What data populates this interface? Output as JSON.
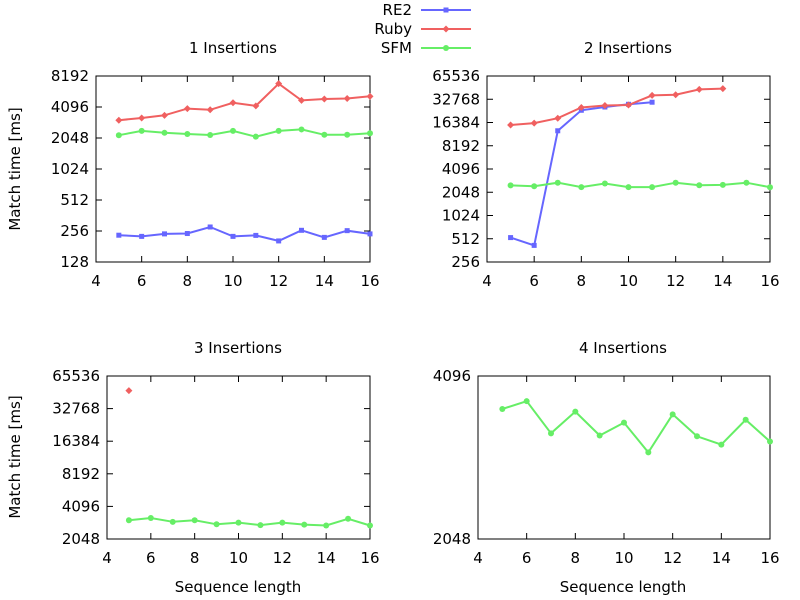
{
  "legend": {
    "placement": "top-center",
    "entries": [
      {
        "name": "RE2",
        "color": "#6666ff",
        "marker": "square"
      },
      {
        "name": "Ruby",
        "color": "#f06060",
        "marker": "diamond"
      },
      {
        "name": "SFM",
        "color": "#66ee66",
        "marker": "circle"
      }
    ]
  },
  "chart_data": [
    {
      "type": "line",
      "title": "1 Insertions",
      "xlabel": "",
      "ylabel": "Match time [ms]",
      "xlim": [
        4,
        16
      ],
      "ylim": [
        128,
        8192
      ],
      "yscale": "log2",
      "xticks": [
        "4",
        "6",
        "8",
        "10",
        "12",
        "14",
        "16"
      ],
      "yticks": [
        "128",
        "256",
        "512",
        "1024",
        "2048",
        "4096",
        "8192"
      ],
      "series": [
        {
          "name": "RE2",
          "x": [
            5,
            6,
            7,
            8,
            9,
            10,
            11,
            12,
            13,
            14,
            15,
            16
          ],
          "y": [
            233,
            227,
            240,
            242,
            280,
            227,
            232,
            205,
            260,
            222,
            258,
            240
          ]
        },
        {
          "name": "Ruby",
          "x": [
            5,
            6,
            7,
            8,
            9,
            10,
            11,
            12,
            13,
            14,
            15,
            16
          ],
          "y": [
            3050,
            3200,
            3400,
            3950,
            3850,
            4500,
            4200,
            6900,
            4750,
            4900,
            4950,
            5200
          ]
        },
        {
          "name": "SFM",
          "x": [
            5,
            6,
            7,
            8,
            9,
            10,
            11,
            12,
            13,
            14,
            15,
            16
          ],
          "y": [
            2180,
            2400,
            2300,
            2240,
            2190,
            2400,
            2110,
            2400,
            2480,
            2200,
            2200,
            2280
          ]
        }
      ]
    },
    {
      "type": "line",
      "title": "2 Insertions",
      "xlabel": "",
      "ylabel": "",
      "xlim": [
        4,
        16
      ],
      "ylim": [
        256,
        65536
      ],
      "yscale": "log2",
      "xticks": [
        "4",
        "6",
        "8",
        "10",
        "12",
        "14",
        "16"
      ],
      "yticks": [
        "256",
        "512",
        "1024",
        "2048",
        "4096",
        "8192",
        "16384",
        "32768",
        "65536"
      ],
      "series": [
        {
          "name": "RE2",
          "x": [
            5,
            6,
            7,
            8,
            9,
            10,
            11
          ],
          "y": [
            530,
            420,
            12800,
            23600,
            26000,
            28200,
            30000
          ]
        },
        {
          "name": "Ruby",
          "x": [
            5,
            6,
            7,
            8,
            9,
            10,
            11,
            12,
            13,
            14
          ],
          "y": [
            15200,
            16100,
            18600,
            25600,
            27200,
            27600,
            36800,
            37500,
            44000,
            45000
          ]
        },
        {
          "name": "SFM",
          "x": [
            5,
            6,
            7,
            8,
            9,
            10,
            11,
            12,
            13,
            14,
            15,
            16
          ],
          "y": [
            2510,
            2450,
            2720,
            2390,
            2660,
            2390,
            2390,
            2720,
            2520,
            2550,
            2720,
            2380
          ]
        }
      ]
    },
    {
      "type": "line",
      "title": "3 Insertions",
      "xlabel": "Sequence length",
      "ylabel": "Match time [ms]",
      "xlim": [
        4,
        16
      ],
      "ylim": [
        2048,
        65536
      ],
      "yscale": "log2",
      "xticks": [
        "4",
        "6",
        "8",
        "10",
        "12",
        "14",
        "16"
      ],
      "yticks": [
        "2048",
        "4096",
        "8192",
        "16384",
        "32768",
        "65536"
      ],
      "series": [
        {
          "name": "Ruby",
          "x": [
            5
          ],
          "y": [
            48000
          ]
        },
        {
          "name": "SFM",
          "x": [
            5,
            6,
            7,
            8,
            9,
            10,
            11,
            12,
            13,
            14,
            15,
            16
          ],
          "y": [
            3050,
            3200,
            2950,
            3050,
            2800,
            2900,
            2750,
            2900,
            2780,
            2730,
            3150,
            2730
          ]
        }
      ]
    },
    {
      "type": "line",
      "title": "4 Insertions",
      "xlabel": "Sequence length",
      "ylabel": "",
      "xlim": [
        4,
        16
      ],
      "ylim": [
        2048,
        4096
      ],
      "yscale": "log2",
      "xticks": [
        "4",
        "6",
        "8",
        "10",
        "12",
        "14",
        "16"
      ],
      "yticks": [
        "2048",
        "4096"
      ],
      "series": [
        {
          "name": "SFM",
          "x": [
            5,
            6,
            7,
            8,
            9,
            10,
            11,
            12,
            13,
            14,
            15,
            16
          ],
          "y": [
            3560,
            3680,
            3210,
            3520,
            3180,
            3360,
            2960,
            3480,
            3170,
            3060,
            3400,
            3100
          ]
        }
      ]
    }
  ]
}
